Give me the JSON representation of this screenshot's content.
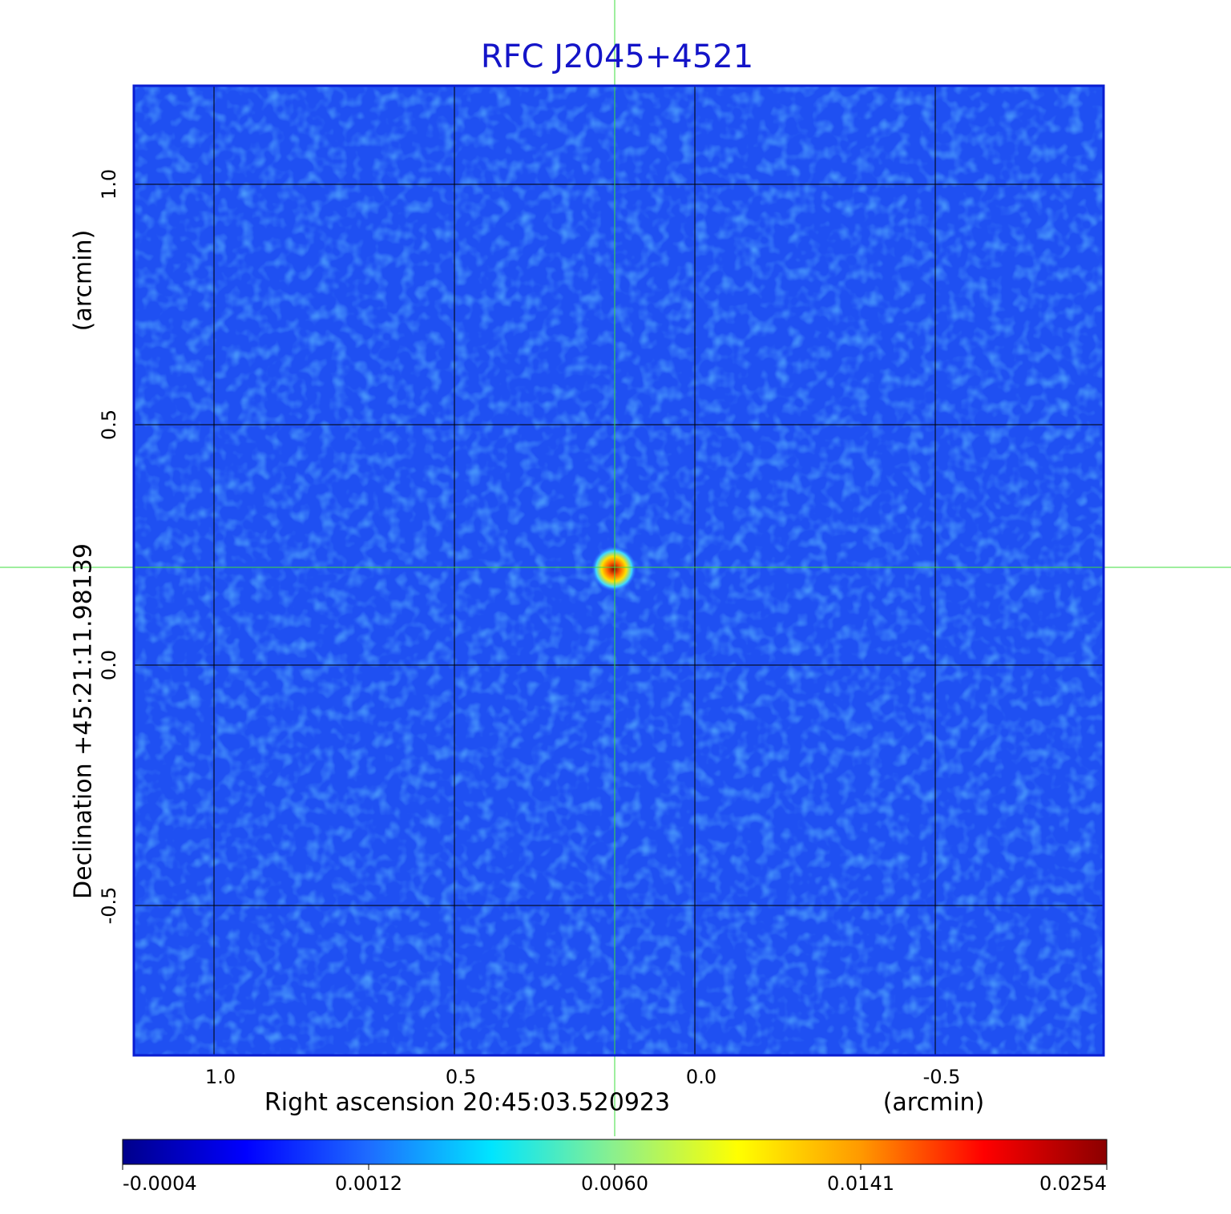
{
  "chart_data": {
    "type": "image",
    "title": "RFC J2045+4521",
    "x_label": "Right ascension  20:45:03.520923",
    "x_unit": "(arcmin)",
    "y_label": "Declination  +45:21:11.98139",
    "y_unit": "(arcmin)",
    "xlim": [
      1.1667,
      -0.85
    ],
    "ylim": [
      -0.8117,
      1.205
    ],
    "xticks": [
      {
        "value": 1,
        "label": "1.0"
      },
      {
        "value": 0.5,
        "label": "0.5"
      },
      {
        "value": 0,
        "label": "0.0"
      },
      {
        "value": -0.5,
        "label": "-0.5"
      }
    ],
    "yticks": [
      {
        "value": 1,
        "label": "1.0"
      },
      {
        "value": 0.5,
        "label": "0.5"
      },
      {
        "value": 0,
        "label": "0.0"
      },
      {
        "value": -0.5,
        "label": "-0.5"
      }
    ],
    "grid": true,
    "colormap": [
      "#00008b",
      "#0000ff",
      "#1e6cff",
      "#00e5ff",
      "#8cf08c",
      "#ffff00",
      "#ff9900",
      "#ff0000",
      "#8b0000"
    ],
    "colorbar_ticks": [
      {
        "value": -0.0004,
        "label": "-0.0004"
      },
      {
        "value": 0.0012,
        "label": "0.0012"
      },
      {
        "value": 0.006,
        "label": "0.0060"
      },
      {
        "value": 0.0141,
        "label": "0.0141"
      },
      {
        "value": 0.0254,
        "label": "0.0254"
      }
    ]
  }
}
